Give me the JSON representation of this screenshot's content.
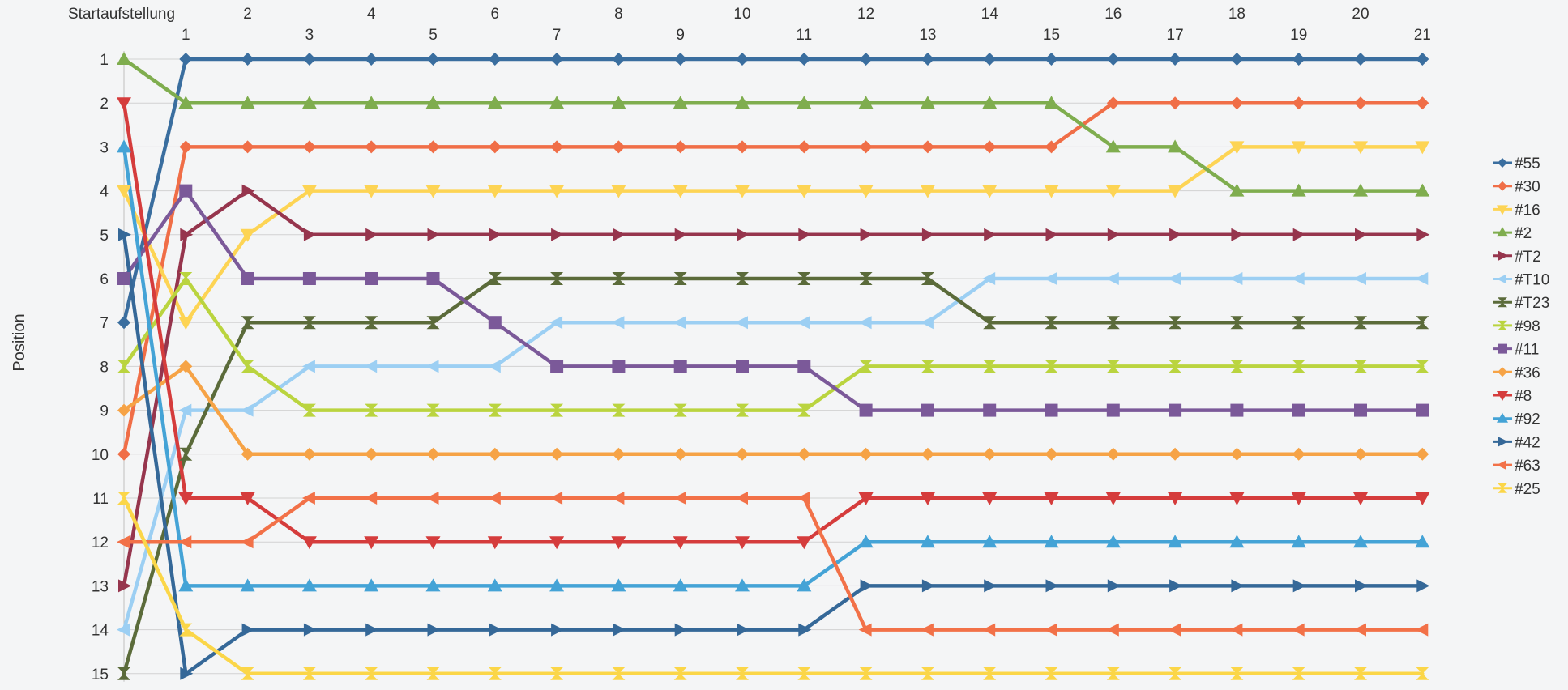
{
  "chart_data": {
    "type": "line",
    "ylabel": "Position",
    "x_labels": [
      "Startaufstellung",
      "1",
      "2",
      "3",
      "4",
      "5",
      "6",
      "7",
      "8",
      "9",
      "10",
      "11",
      "12",
      "13",
      "14",
      "15",
      "16",
      "17",
      "18",
      "19",
      "20",
      "21"
    ],
    "y_ticks": [
      1,
      2,
      3,
      4,
      5,
      6,
      7,
      8,
      9,
      10,
      11,
      12,
      13,
      14,
      15
    ],
    "ylim": [
      1,
      15
    ],
    "y_inverted": true,
    "grid": true,
    "legend_position": "right",
    "series": [
      {
        "name": "#55",
        "color": "#3a6e9f",
        "marker": "diamond",
        "values": [
          7,
          1,
          1,
          1,
          1,
          1,
          1,
          1,
          1,
          1,
          1,
          1,
          1,
          1,
          1,
          1,
          1,
          1,
          1,
          1,
          1,
          1
        ]
      },
      {
        "name": "#30",
        "color": "#f06e47",
        "marker": "diamond",
        "values": [
          10,
          3,
          3,
          3,
          3,
          3,
          3,
          3,
          3,
          3,
          3,
          3,
          3,
          3,
          3,
          3,
          2,
          2,
          2,
          2,
          2,
          2
        ]
      },
      {
        "name": "#16",
        "color": "#fdd454",
        "marker": "triangle-down",
        "values": [
          4,
          7,
          5,
          4,
          4,
          4,
          4,
          4,
          4,
          4,
          4,
          4,
          4,
          4,
          4,
          4,
          4,
          4,
          3,
          3,
          3,
          3
        ]
      },
      {
        "name": "#2",
        "color": "#7fad4e",
        "marker": "triangle-up",
        "values": [
          1,
          2,
          2,
          2,
          2,
          2,
          2,
          2,
          2,
          2,
          2,
          2,
          2,
          2,
          2,
          2,
          3,
          3,
          4,
          4,
          4,
          4
        ]
      },
      {
        "name": "#T2",
        "color": "#96354d",
        "marker": "triangle-right",
        "values": [
          13,
          5,
          4,
          5,
          5,
          5,
          5,
          5,
          5,
          5,
          5,
          5,
          5,
          5,
          5,
          5,
          5,
          5,
          5,
          5,
          5,
          5
        ]
      },
      {
        "name": "#T10",
        "color": "#9ccff3",
        "marker": "triangle-left",
        "values": [
          14,
          9,
          9,
          8,
          8,
          8,
          8,
          7,
          7,
          7,
          7,
          7,
          7,
          7,
          6,
          6,
          6,
          6,
          6,
          6,
          6,
          6
        ]
      },
      {
        "name": "#T23",
        "color": "#5b6b3a",
        "marker": "bowtie",
        "values": [
          15,
          10,
          7,
          7,
          7,
          7,
          6,
          6,
          6,
          6,
          6,
          6,
          6,
          6,
          7,
          7,
          7,
          7,
          7,
          7,
          7,
          7
        ]
      },
      {
        "name": "#98",
        "color": "#bad43f",
        "marker": "bowtie",
        "values": [
          8,
          6,
          8,
          9,
          9,
          9,
          9,
          9,
          9,
          9,
          9,
          9,
          8,
          8,
          8,
          8,
          8,
          8,
          8,
          8,
          8,
          8
        ]
      },
      {
        "name": "#11",
        "color": "#7b5999",
        "marker": "square",
        "values": [
          6,
          4,
          6,
          6,
          6,
          6,
          7,
          8,
          8,
          8,
          8,
          8,
          9,
          9,
          9,
          9,
          9,
          9,
          9,
          9,
          9,
          9
        ]
      },
      {
        "name": "#36",
        "color": "#f6a346",
        "marker": "diamond",
        "values": [
          9,
          8,
          10,
          10,
          10,
          10,
          10,
          10,
          10,
          10,
          10,
          10,
          10,
          10,
          10,
          10,
          10,
          10,
          10,
          10,
          10,
          10
        ]
      },
      {
        "name": "#8",
        "color": "#d53c3c",
        "marker": "triangle-down",
        "values": [
          2,
          11,
          11,
          12,
          12,
          12,
          12,
          12,
          12,
          12,
          12,
          12,
          11,
          11,
          11,
          11,
          11,
          11,
          11,
          11,
          11,
          11
        ]
      },
      {
        "name": "#92",
        "color": "#44a3d6",
        "marker": "triangle-up",
        "values": [
          3,
          13,
          13,
          13,
          13,
          13,
          13,
          13,
          13,
          13,
          13,
          13,
          12,
          12,
          12,
          12,
          12,
          12,
          12,
          12,
          12,
          12
        ]
      },
      {
        "name": "#42",
        "color": "#356898",
        "marker": "triangle-right",
        "values": [
          5,
          15,
          14,
          14,
          14,
          14,
          14,
          14,
          14,
          14,
          14,
          14,
          13,
          13,
          13,
          13,
          13,
          13,
          13,
          13,
          13,
          13
        ]
      },
      {
        "name": "#63",
        "color": "#f27148",
        "marker": "triangle-left",
        "values": [
          12,
          12,
          12,
          11,
          11,
          11,
          11,
          11,
          11,
          11,
          11,
          11,
          14,
          14,
          14,
          14,
          14,
          14,
          14,
          14,
          14,
          14
        ]
      },
      {
        "name": "#25",
        "color": "#fbd648",
        "marker": "bowtie",
        "values": [
          11,
          14,
          15,
          15,
          15,
          15,
          15,
          15,
          15,
          15,
          15,
          15,
          15,
          15,
          15,
          15,
          15,
          15,
          15,
          15,
          15,
          15
        ]
      }
    ]
  }
}
